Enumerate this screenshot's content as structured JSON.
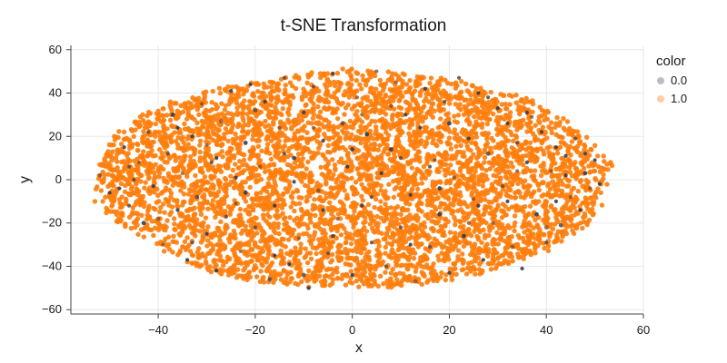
{
  "chart_data": {
    "type": "scatter",
    "title": "t-SNE Transformation",
    "xlabel": "x",
    "ylabel": "y",
    "xlim": [
      -58,
      60
    ],
    "ylim": [
      -62,
      62
    ],
    "x_ticks": [
      -40,
      -20,
      0,
      20,
      40,
      60
    ],
    "y_ticks": [
      -60,
      -40,
      -20,
      0,
      20,
      40,
      60
    ],
    "x_tick_labels": [
      "−40",
      "−20",
      "0",
      "20",
      "40",
      "60"
    ],
    "y_tick_labels": [
      "−60",
      "−40",
      "−20",
      "0",
      "20",
      "40",
      "60"
    ],
    "grid": true,
    "legend": {
      "title": "color",
      "placement": "top-right outside"
    },
    "series": [
      {
        "name": "0.0",
        "color": "#2b3a55",
        "points": [
          [
            -52,
            2
          ],
          [
            -50,
            -6
          ],
          [
            -47,
            15
          ],
          [
            -46,
            -12
          ],
          [
            -44,
            8
          ],
          [
            -43,
            -20
          ],
          [
            -42,
            22
          ],
          [
            -41,
            -3
          ],
          [
            -39,
            -30
          ],
          [
            -38,
            12
          ],
          [
            -37,
            30
          ],
          [
            -36,
            -14
          ],
          [
            -35,
            3
          ],
          [
            -34,
            -37
          ],
          [
            -33,
            20
          ],
          [
            -32,
            -8
          ],
          [
            -31,
            35
          ],
          [
            -30,
            -25
          ],
          [
            -29,
            8
          ],
          [
            -28,
            -42
          ],
          [
            -27,
            27
          ],
          [
            -26,
            -17
          ],
          [
            -25,
            41
          ],
          [
            -24,
            1
          ],
          [
            -23,
            -33
          ],
          [
            -22,
            17
          ],
          [
            -21,
            44
          ],
          [
            -20,
            -22
          ],
          [
            -19,
            6
          ],
          [
            -18,
            36
          ],
          [
            -17,
            -46
          ],
          [
            -16,
            -12
          ],
          [
            -15,
            24
          ],
          [
            -14,
            47
          ],
          [
            -13,
            -39
          ],
          [
            -12,
            10
          ],
          [
            -11,
            -27
          ],
          [
            -10,
            31
          ],
          [
            -9,
            -50
          ],
          [
            -8,
            43
          ],
          [
            -7,
            -5
          ],
          [
            -6,
            18
          ],
          [
            -5,
            -34
          ],
          [
            -4,
            49
          ],
          [
            -3,
            -18
          ],
          [
            -2,
            26
          ],
          [
            -1,
            6
          ],
          [
            0,
            -44
          ],
          [
            1,
            38
          ],
          [
            2,
            -12
          ],
          [
            3,
            21
          ],
          [
            4,
            -29
          ],
          [
            5,
            50
          ],
          [
            6,
            3
          ],
          [
            7,
            -40
          ],
          [
            8,
            14
          ],
          [
            9,
            45
          ],
          [
            10,
            -22
          ],
          [
            11,
            30
          ],
          [
            12,
            -7
          ],
          [
            13,
            -47
          ],
          [
            14,
            24
          ],
          [
            15,
            42
          ],
          [
            16,
            -31
          ],
          [
            17,
            9
          ],
          [
            18,
            -16
          ],
          [
            19,
            36
          ],
          [
            20,
            -43
          ],
          [
            21,
            1
          ],
          [
            22,
            47
          ],
          [
            23,
            -26
          ],
          [
            24,
            19
          ],
          [
            25,
            -9
          ],
          [
            26,
            40
          ],
          [
            27,
            -37
          ],
          [
            28,
            12
          ],
          [
            29,
            -20
          ],
          [
            30,
            33
          ],
          [
            31,
            -3
          ],
          [
            32,
            26
          ],
          [
            33,
            -31
          ],
          [
            34,
            17
          ],
          [
            35,
            -41
          ],
          [
            36,
            8
          ],
          [
            37,
            29
          ],
          [
            38,
            -16
          ],
          [
            39,
            22
          ],
          [
            40,
            -29
          ],
          [
            41,
            4
          ],
          [
            42,
            15
          ],
          [
            43,
            -21
          ],
          [
            44,
            11
          ],
          [
            45,
            -8
          ],
          [
            46,
            19
          ],
          [
            47,
            -14
          ],
          [
            48,
            3
          ],
          [
            49,
            -4
          ],
          [
            50,
            9
          ],
          [
            51,
            -2
          ],
          [
            -45,
            0
          ],
          [
            -40,
            -18
          ],
          [
            -36,
            24
          ],
          [
            -33,
            -29
          ],
          [
            -28,
            10
          ],
          [
            -24,
            -11
          ],
          [
            -20,
            32
          ],
          [
            -16,
            -35
          ],
          [
            -12,
            -1
          ],
          [
            -8,
            24
          ],
          [
            -4,
            -26
          ],
          [
            0,
            14
          ],
          [
            4,
            -8
          ],
          [
            8,
            34
          ],
          [
            12,
            -30
          ],
          [
            16,
            6
          ],
          [
            20,
            26
          ],
          [
            24,
            -20
          ],
          [
            28,
            38
          ],
          [
            32,
            -10
          ],
          [
            36,
            31
          ],
          [
            40,
            -22
          ],
          [
            44,
            2
          ],
          [
            -48,
            -4
          ],
          [
            -46,
            6
          ],
          [
            -30,
            16
          ],
          [
            -22,
            -6
          ],
          [
            -14,
            12
          ],
          [
            -6,
            -14
          ],
          [
            2,
            30
          ],
          [
            10,
            10
          ],
          [
            18,
            -4
          ],
          [
            26,
            -12
          ],
          [
            34,
            4
          ],
          [
            42,
            -10
          ],
          [
            48,
            12
          ],
          [
            -10,
            -44
          ]
        ]
      },
      {
        "name": "1.0",
        "color": "#ff7f0e",
        "points": []
      }
    ]
  }
}
